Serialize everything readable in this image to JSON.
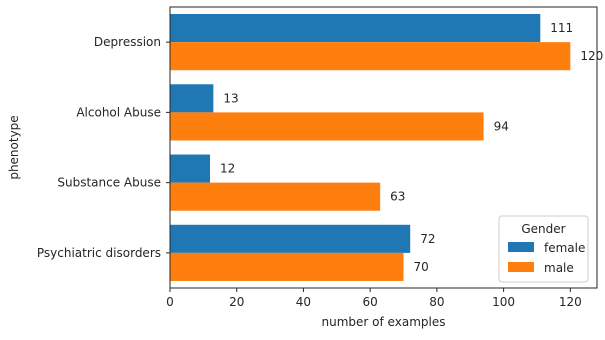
{
  "chart_data": {
    "type": "bar",
    "orientation": "horizontal",
    "categories": [
      "Depression",
      "Alcohol Abuse",
      "Substance Abuse",
      "Psychiatric disorders"
    ],
    "series": [
      {
        "name": "female",
        "values": [
          111,
          13,
          12,
          72
        ],
        "color": "#1f77b4"
      },
      {
        "name": "male",
        "values": [
          120,
          94,
          63,
          70
        ],
        "color": "#ff7f0e"
      }
    ],
    "xlabel": "number of examples",
    "ylabel": "phenotype",
    "xlim": [
      0,
      128
    ],
    "xticks": [
      0,
      20,
      40,
      60,
      80,
      100,
      120
    ],
    "legend": {
      "title": "Gender",
      "placement": "lower-right"
    },
    "grid": false
  }
}
